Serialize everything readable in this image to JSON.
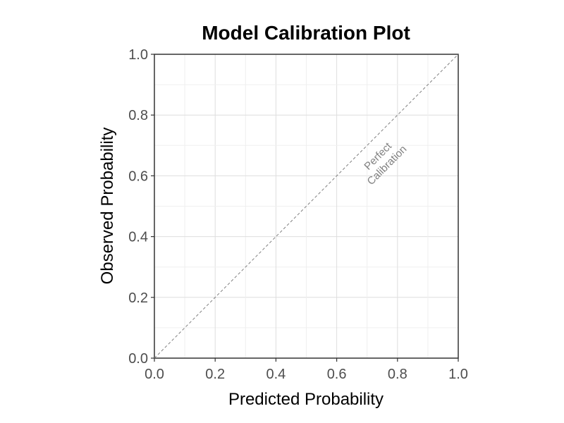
{
  "chart_data": {
    "type": "line",
    "title": "Model Calibration Plot",
    "xlabel": "Predicted Probability",
    "ylabel": "Observed Probability",
    "xlim": [
      0,
      1
    ],
    "ylim": [
      0,
      1
    ],
    "x_ticks": [
      "0.0",
      "0.2",
      "0.4",
      "0.6",
      "0.8",
      "1.0"
    ],
    "y_ticks": [
      "0.0",
      "0.2",
      "0.4",
      "0.6",
      "0.8",
      "1.0"
    ],
    "grid": true,
    "reference_line": {
      "x": [
        0,
        1
      ],
      "y": [
        0,
        1
      ],
      "style": "dashed",
      "color": "#808080"
    },
    "annotation": {
      "lines": [
        "Perfect",
        "Calibration"
      ],
      "x": 0.75,
      "y": 0.65,
      "color": "#808080"
    },
    "series": []
  }
}
